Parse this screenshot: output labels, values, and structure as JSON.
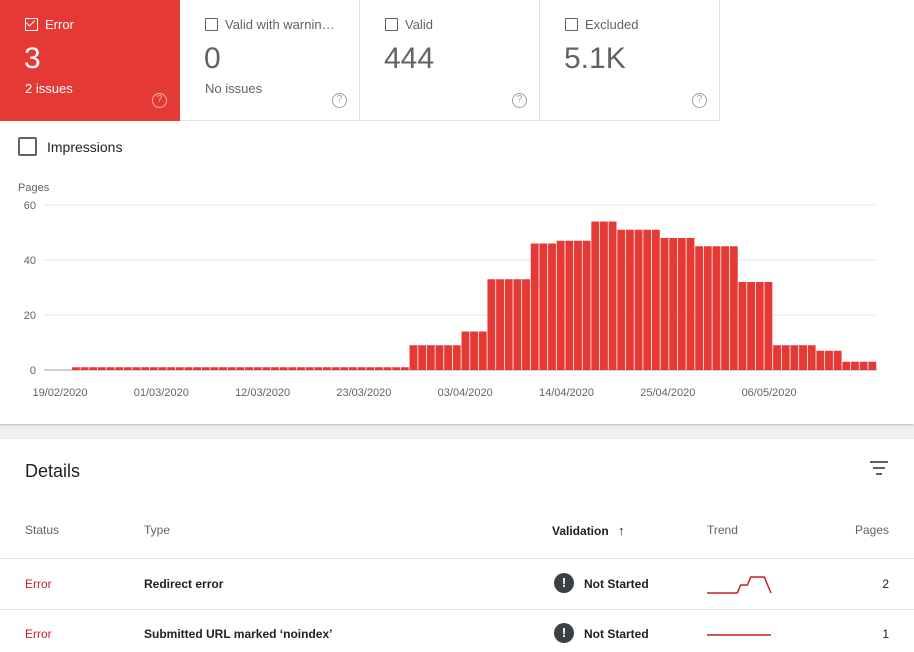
{
  "tiles": [
    {
      "label": "Error",
      "value": "3",
      "sub": "2 issues",
      "checked": true,
      "help": "?"
    },
    {
      "label": "Valid with warnin…",
      "value": "0",
      "sub": "No issues",
      "checked": false,
      "help": "?"
    },
    {
      "label": "Valid",
      "value": "444",
      "sub": "",
      "checked": false,
      "help": "?"
    },
    {
      "label": "Excluded",
      "value": "5.1K",
      "sub": "",
      "checked": false,
      "help": "?"
    }
  ],
  "impressions_label": "Impressions",
  "chart_data": {
    "type": "bar",
    "ylabel": "Pages",
    "ylim": [
      0,
      60
    ],
    "yticks": [
      0,
      20,
      40,
      60
    ],
    "xtick_labels": [
      "19/02/2020",
      "01/03/2020",
      "12/03/2020",
      "23/03/2020",
      "03/04/2020",
      "14/04/2020",
      "25/04/2020",
      "06/05/2020"
    ],
    "bar_color": "#e53935",
    "series": [
      {
        "values": [
          0,
          0,
          0,
          1,
          1,
          1,
          1,
          1,
          1,
          1,
          1,
          1,
          1,
          1,
          1,
          1,
          1,
          1,
          1,
          1,
          1,
          1,
          1,
          1,
          1,
          1,
          1,
          1,
          1,
          1,
          1,
          1,
          1,
          1,
          1,
          1,
          1,
          1,
          1,
          1,
          1,
          1,
          9,
          9,
          9,
          9,
          9,
          9,
          14,
          14,
          14,
          33,
          33,
          33,
          33,
          33,
          46,
          46,
          46,
          47,
          47,
          47,
          47,
          54,
          54,
          54,
          51,
          51,
          51,
          51,
          51,
          48,
          48,
          48,
          48,
          45,
          45,
          45,
          45,
          45,
          32,
          32,
          32,
          32,
          9,
          9,
          9,
          9,
          9,
          7,
          7,
          7,
          3,
          3,
          3,
          3
        ]
      }
    ]
  },
  "details": {
    "title": "Details",
    "columns": {
      "status": "Status",
      "type": "Type",
      "validation": "Validation",
      "sort_arrow": "↑",
      "trend": "Trend",
      "pages": "Pages"
    },
    "rows": [
      {
        "status": "Error",
        "type": "Redirect error",
        "validation_icon": "!",
        "validation": "Not Started",
        "pages": "2",
        "trend": [
          0,
          0,
          0,
          0,
          0,
          0,
          0,
          0,
          0,
          0,
          1,
          1,
          1,
          2,
          2,
          2,
          2,
          2,
          1,
          0
        ]
      },
      {
        "status": "Error",
        "type": "Submitted URL marked ‘noindex’",
        "validation_icon": "!",
        "validation": "Not Started",
        "pages": "1",
        "trend": [
          1,
          1,
          1,
          1,
          1,
          1,
          1,
          1,
          1,
          1,
          1,
          1,
          1,
          1,
          1,
          1,
          1,
          1,
          1,
          1
        ]
      }
    ]
  }
}
